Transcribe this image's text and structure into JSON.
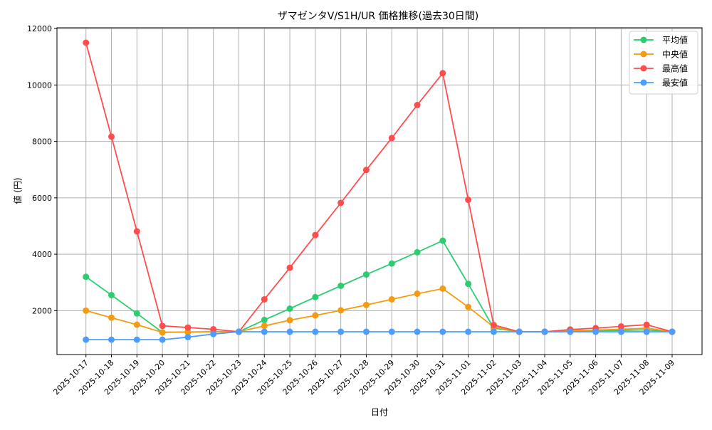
{
  "chart_data": {
    "type": "line",
    "title": "ザマゼンタV/S1H/UR 価格推移(過去30日間)",
    "xlabel": "日付",
    "ylabel": "値 (円)",
    "ylim": [
      443,
      12030
    ],
    "yticks": [
      2000,
      4000,
      6000,
      8000,
      10000,
      12000
    ],
    "grid": true,
    "legend_position": "upper right",
    "categories": [
      "2025-10-17",
      "2025-10-18",
      "2025-10-19",
      "2025-10-20",
      "2025-10-21",
      "2025-10-22",
      "2025-10-23",
      "2025-10-24",
      "2025-10-25",
      "2025-10-26",
      "2025-10-27",
      "2025-10-28",
      "2025-10-29",
      "2025-10-30",
      "2025-10-31",
      "2025-11-01",
      "2025-11-02",
      "2025-11-03",
      "2025-11-04",
      "2025-11-05",
      "2025-11-06",
      "2025-11-07",
      "2025-11-08",
      "2025-11-09"
    ],
    "series": [
      {
        "name": "平均値",
        "color": "#2ecc71",
        "values": [
          3200,
          2550,
          1900,
          1230,
          1240,
          1250,
          1250,
          1670,
          2070,
          2480,
          2880,
          3280,
          3670,
          4070,
          4480,
          2950,
          1380,
          1250,
          1250,
          1270,
          1290,
          1300,
          1320,
          1250
        ]
      },
      {
        "name": "中央値",
        "color": "#f39c12",
        "values": [
          2000,
          1750,
          1500,
          1230,
          1240,
          1250,
          1250,
          1460,
          1660,
          1830,
          2010,
          2200,
          2400,
          2600,
          2780,
          2130,
          1420,
          1250,
          1250,
          1280,
          1310,
          1340,
          1380,
          1250
        ]
      },
      {
        "name": "最高値",
        "color": "#ff4d4d",
        "values": [
          11500,
          8170,
          4810,
          1460,
          1400,
          1340,
          1250,
          2400,
          3520,
          4680,
          5820,
          6990,
          8120,
          9290,
          10420,
          5930,
          1490,
          1250,
          1250,
          1330,
          1380,
          1440,
          1500,
          1250
        ]
      },
      {
        "name": "最安値",
        "color": "#4d9cff",
        "values": [
          970,
          970,
          970,
          970,
          1060,
          1170,
          1250,
          1250,
          1250,
          1250,
          1250,
          1250,
          1250,
          1250,
          1250,
          1250,
          1250,
          1250,
          1250,
          1250,
          1250,
          1250,
          1250,
          1250
        ]
      }
    ]
  }
}
